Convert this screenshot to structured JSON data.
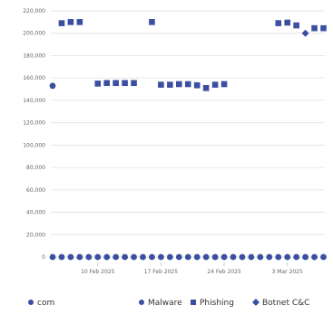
{
  "chart_data": {
    "type": "scatter",
    "title": "",
    "xlabel": "",
    "ylabel": "",
    "ylim": [
      0,
      220000
    ],
    "y_ticks": [
      "220,000",
      "200,000",
      "180,000",
      "160,000",
      "140,000",
      "120,000",
      "100,000",
      "80,000",
      "60,000",
      "40,000",
      "20,000",
      "0"
    ],
    "x_tick_labels": [
      "10 Feb 2025",
      "17 Feb 2025",
      "24 Feb 2025",
      "3 Mar 2025"
    ],
    "x": [
      "2025-02-05",
      "2025-02-06",
      "2025-02-07",
      "2025-02-08",
      "2025-02-09",
      "2025-02-10",
      "2025-02-11",
      "2025-02-12",
      "2025-02-13",
      "2025-02-14",
      "2025-02-15",
      "2025-02-16",
      "2025-02-17",
      "2025-02-18",
      "2025-02-19",
      "2025-02-20",
      "2025-02-21",
      "2025-02-22",
      "2025-02-23",
      "2025-02-24",
      "2025-02-25",
      "2025-02-26",
      "2025-02-27",
      "2025-02-28",
      "2025-03-01",
      "2025-03-02",
      "2025-03-03",
      "2025-03-04",
      "2025-03-05",
      "2025-03-06",
      "2025-03-07"
    ],
    "grid": true,
    "legend_position": "bottom",
    "series": [
      {
        "name": "com",
        "marker": "circle",
        "color": "#3b4fa0",
        "values": [
          153000,
          null,
          null,
          null,
          null,
          null,
          null,
          null,
          null,
          null,
          null,
          null,
          null,
          null,
          null,
          null,
          null,
          null,
          null,
          null,
          null,
          null,
          null,
          null,
          null,
          null,
          null,
          null,
          null,
          null,
          null
        ]
      },
      {
        "name": "Malware",
        "marker": "circle",
        "color": "#3b4fa0",
        "values": [
          0,
          0,
          0,
          0,
          0,
          0,
          0,
          0,
          0,
          0,
          0,
          0,
          0,
          0,
          0,
          0,
          0,
          0,
          0,
          0,
          0,
          0,
          0,
          0,
          0,
          0,
          0,
          0,
          0,
          0,
          0
        ]
      },
      {
        "name": "Phishing",
        "marker": "square",
        "color": "#3b4fa0",
        "values": [
          null,
          209000,
          210000,
          210000,
          null,
          155000,
          155500,
          155500,
          155500,
          155500,
          null,
          210000,
          154000,
          154000,
          154500,
          154500,
          153500,
          151000,
          154000,
          154500,
          null,
          null,
          null,
          null,
          null,
          209000,
          209500,
          207000,
          null,
          204500,
          204500
        ]
      },
      {
        "name": "Botnet C&C",
        "marker": "diamond",
        "color": "#3b4fa0",
        "values": [
          null,
          null,
          null,
          null,
          null,
          null,
          null,
          null,
          null,
          null,
          null,
          null,
          null,
          null,
          null,
          null,
          null,
          null,
          null,
          null,
          null,
          null,
          null,
          null,
          null,
          null,
          null,
          null,
          200000,
          null,
          null
        ]
      }
    ]
  }
}
